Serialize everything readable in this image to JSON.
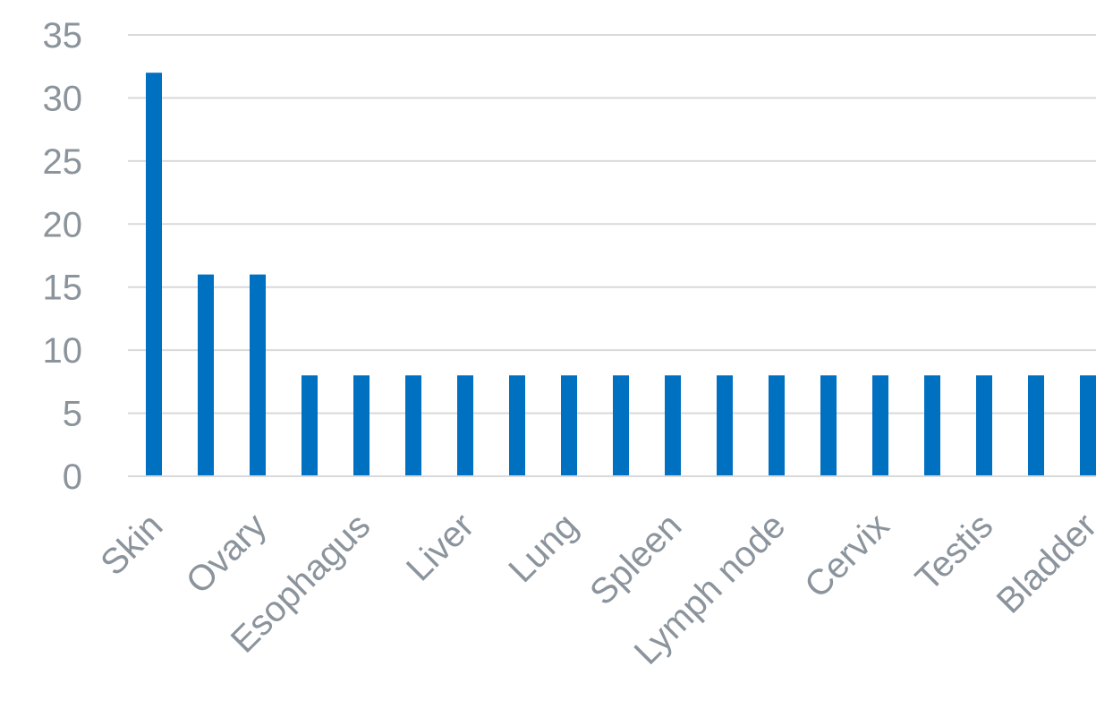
{
  "chart_data": {
    "type": "bar",
    "title": "",
    "xlabel": "",
    "ylabel": "",
    "ylim": [
      0,
      35
    ],
    "yticks": [
      0,
      5,
      10,
      15,
      20,
      25,
      30,
      35
    ],
    "grid": true,
    "bar_color": "#0070c0",
    "categories": [
      "Skin",
      "",
      "Ovary",
      "",
      "Esophagus",
      "",
      "Liver",
      "",
      "Lung",
      "",
      "Spleen",
      "",
      "Lymph node",
      "",
      "Cervix",
      "",
      "Testis",
      "",
      "Bladder"
    ],
    "values": [
      32,
      16,
      16,
      8,
      8,
      8,
      8,
      8,
      8,
      8,
      8,
      8,
      8,
      8,
      8,
      8,
      8,
      8,
      8
    ]
  }
}
